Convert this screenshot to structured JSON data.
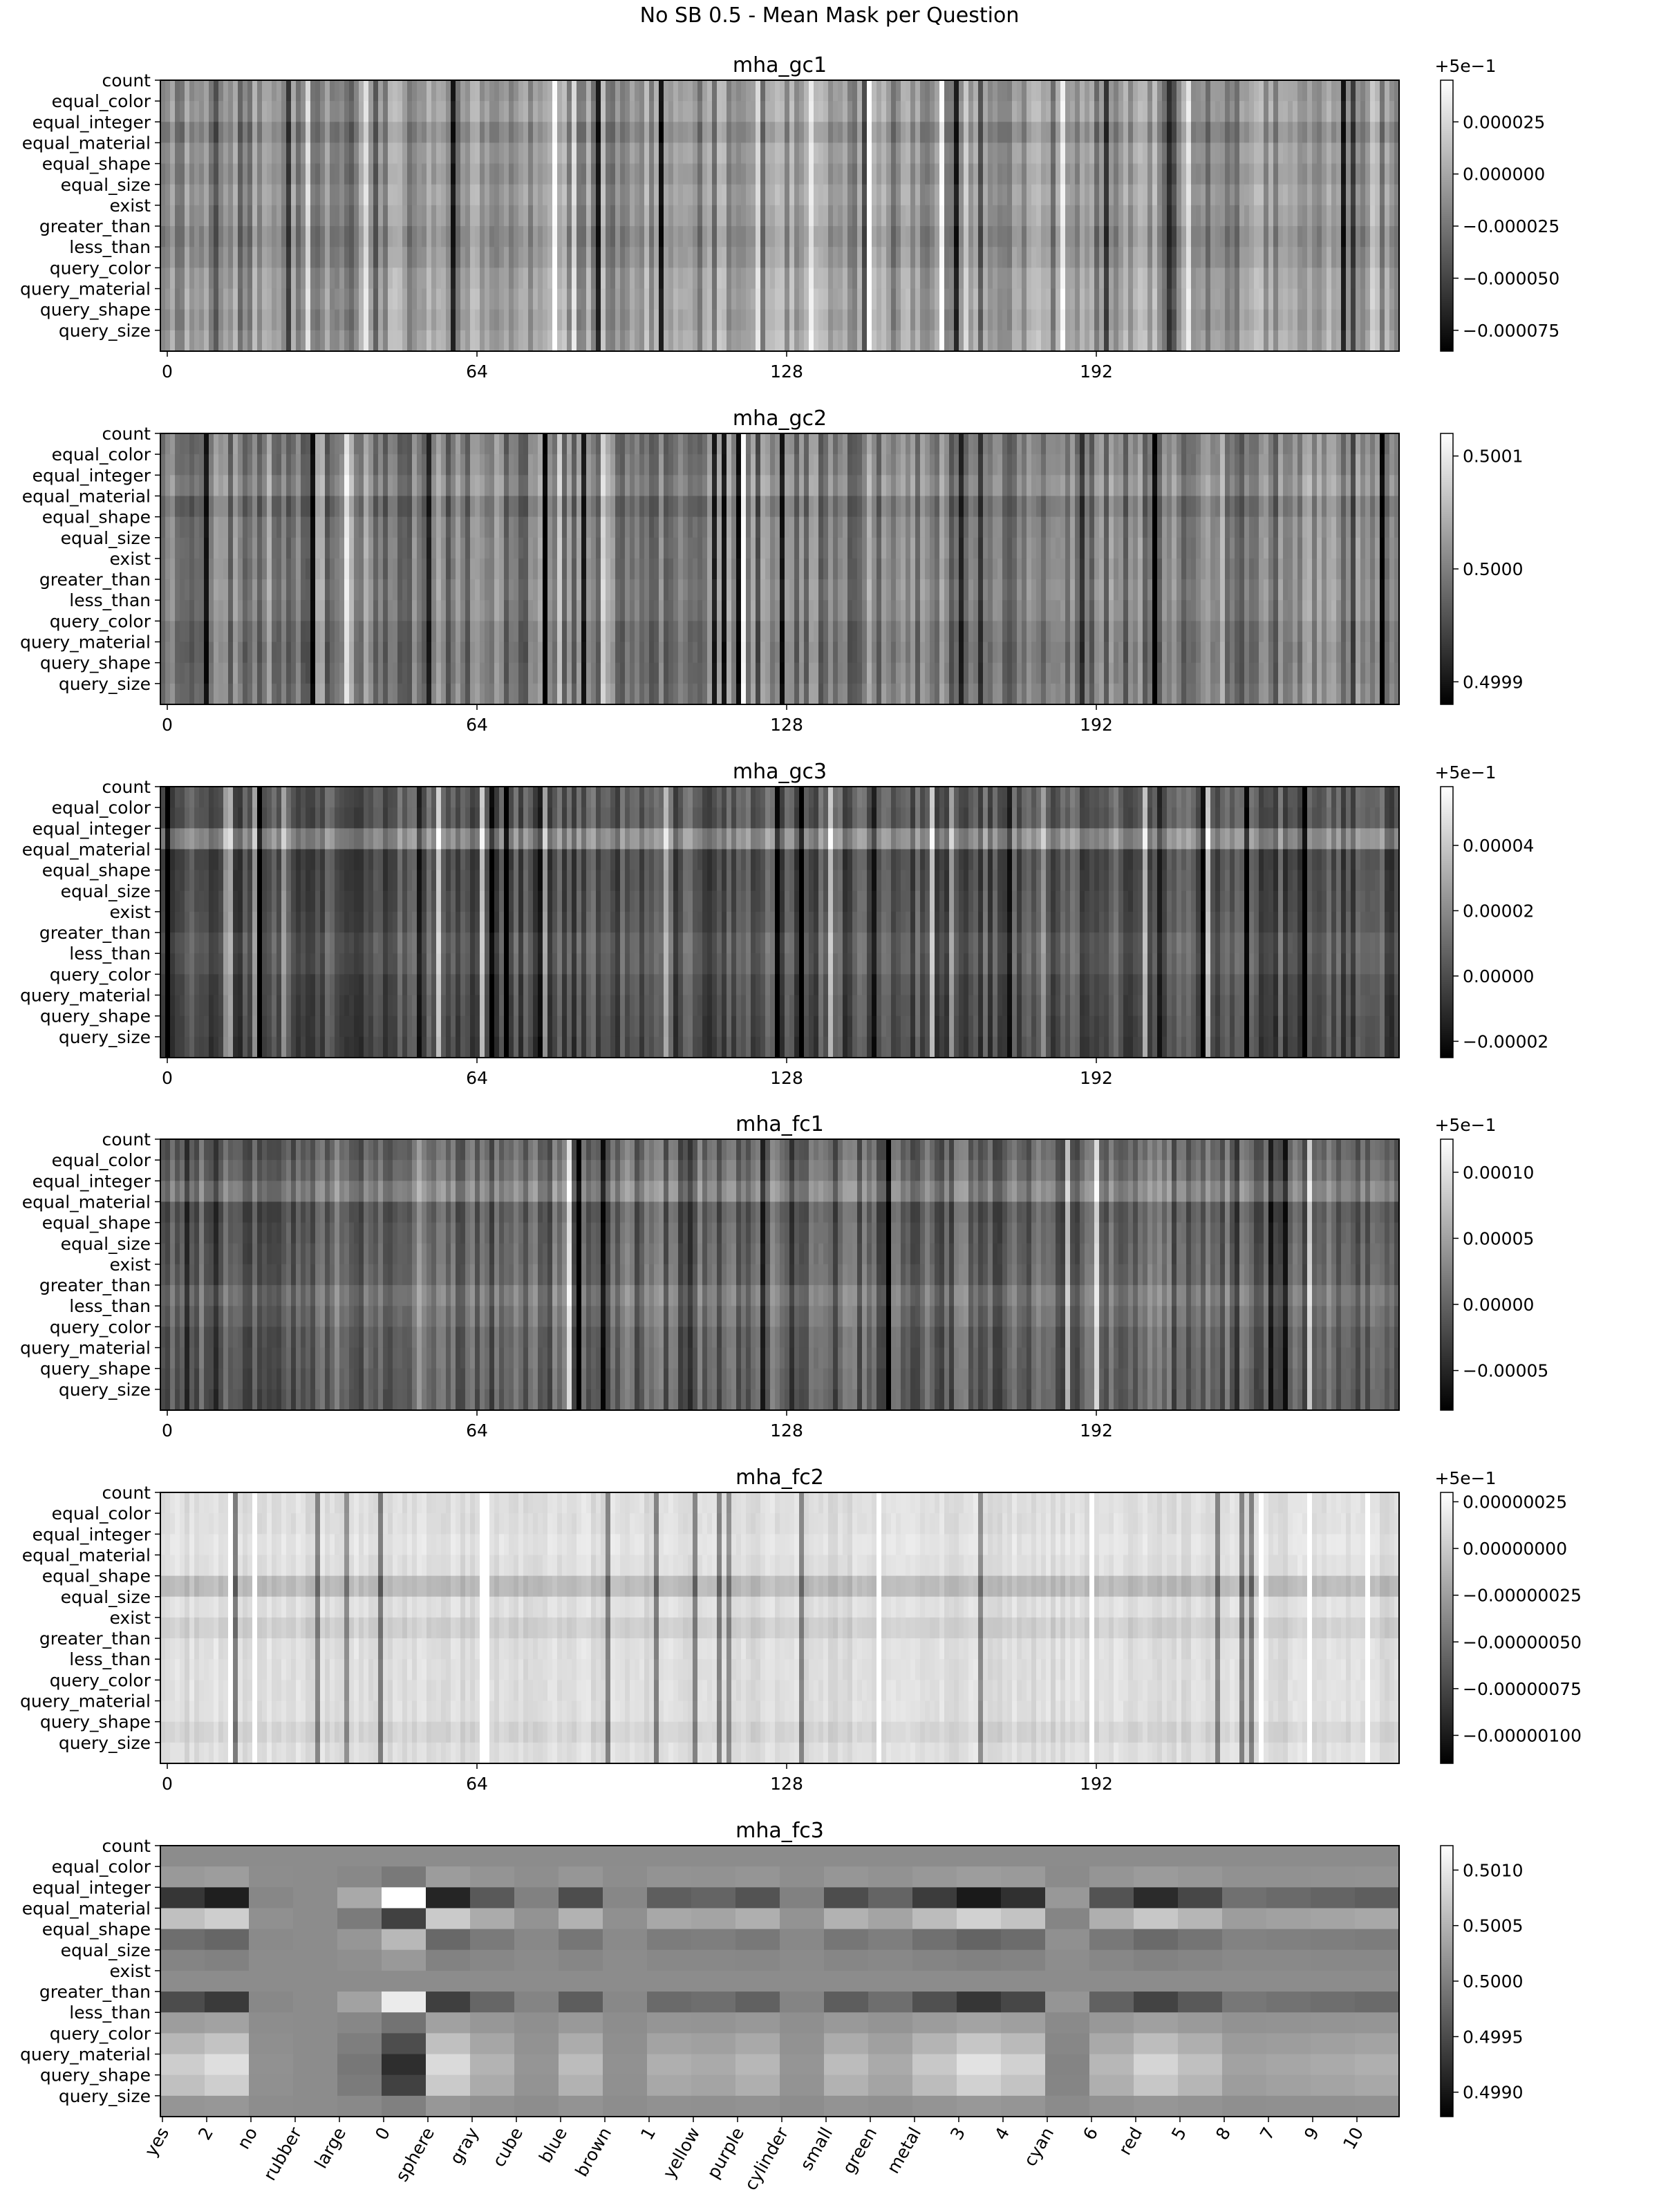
{
  "figure": {
    "title": "No SB 0.5 - Mean Mask per Question"
  },
  "chart_data": [
    {
      "type": "heatmap",
      "title": "mha_gc1",
      "rows": [
        "count",
        "equal_color",
        "equal_integer",
        "equal_material",
        "equal_shape",
        "equal_size",
        "exist",
        "greater_than",
        "less_than",
        "query_color",
        "query_material",
        "query_shape",
        "query_size"
      ],
      "n_cols": 256,
      "x_ticks": [
        0,
        64,
        128,
        192
      ],
      "x_tick_labels": [
        "0",
        "64",
        "128",
        "192"
      ],
      "colorbar": {
        "offset_label": "+5e−1",
        "ticks": [
          2.5e-05,
          0.0,
          -2.5e-05,
          -5e-05,
          -7.5e-05
        ],
        "tick_labels": [
          "0.000025",
          "0.000000",
          "−0.000025",
          "−0.000050",
          "−0.000075"
        ],
        "range": [
          -8.5e-05,
          4.5e-05
        ]
      },
      "seed": 11,
      "base": 0.58,
      "row_var": 0.05,
      "col_var": 0.16,
      "noise": 0.04,
      "row_offsets": [
        0,
        0.02,
        -0.06,
        0.01,
        -0.02,
        0.02,
        -0.01,
        -0.05,
        -0.02,
        0.03,
        0.04,
        0.02,
        0.05
      ]
    },
    {
      "type": "heatmap",
      "title": "mha_gc2",
      "rows": [
        "count",
        "equal_color",
        "equal_integer",
        "equal_material",
        "equal_shape",
        "equal_size",
        "exist",
        "greater_than",
        "less_than",
        "query_color",
        "query_material",
        "query_shape",
        "query_size"
      ],
      "n_cols": 256,
      "x_ticks": [
        0,
        64,
        128,
        192
      ],
      "x_tick_labels": [
        "0",
        "64",
        "128",
        "192"
      ],
      "colorbar": {
        "offset_label": "",
        "ticks": [
          0.5001,
          0.5,
          0.4999
        ],
        "tick_labels": [
          "0.5001",
          "0.5000",
          "0.4999"
        ],
        "range": [
          0.49988,
          0.50012
        ]
      },
      "seed": 23,
      "base": 0.5,
      "row_var": 0.04,
      "col_var": 0.18,
      "noise": 0.04,
      "row_offsets": [
        0,
        0.02,
        0.06,
        -0.04,
        0.01,
        0.02,
        0.01,
        0.03,
        0.02,
        -0.02,
        -0.03,
        -0.02,
        0.0
      ]
    },
    {
      "type": "heatmap",
      "title": "mha_gc3",
      "rows": [
        "count",
        "equal_color",
        "equal_integer",
        "equal_material",
        "equal_shape",
        "equal_size",
        "exist",
        "greater_than",
        "less_than",
        "query_color",
        "query_material",
        "query_shape",
        "query_size"
      ],
      "n_cols": 256,
      "x_ticks": [
        0,
        64,
        128,
        192
      ],
      "x_tick_labels": [
        "0",
        "64",
        "128",
        "192"
      ],
      "colorbar": {
        "offset_label": "+5e−1",
        "ticks": [
          4e-05,
          2e-05,
          0.0,
          -2e-05
        ],
        "tick_labels": [
          "0.00004",
          "0.00002",
          "0.00000",
          "−0.00002"
        ],
        "range": [
          -2.5e-05,
          5.8e-05
        ]
      },
      "seed": 37,
      "base": 0.33,
      "row_var": 0.04,
      "col_var": 0.14,
      "noise": 0.03,
      "row_offsets": [
        0.03,
        0.02,
        0.22,
        -0.03,
        -0.02,
        -0.01,
        0.0,
        0.04,
        0.03,
        -0.01,
        -0.02,
        -0.03,
        -0.04
      ]
    },
    {
      "type": "heatmap",
      "title": "mha_fc1",
      "rows": [
        "count",
        "equal_color",
        "equal_integer",
        "equal_material",
        "equal_shape",
        "equal_size",
        "exist",
        "greater_than",
        "less_than",
        "query_color",
        "query_material",
        "query_shape",
        "query_size"
      ],
      "n_cols": 256,
      "x_ticks": [
        0,
        64,
        128,
        192
      ],
      "x_tick_labels": [
        "0",
        "64",
        "128",
        "192"
      ],
      "colorbar": {
        "offset_label": "+5e−1",
        "ticks": [
          0.0001,
          5e-05,
          0.0,
          -5e-05
        ],
        "tick_labels": [
          "0.00010",
          "0.00005",
          "0.00000",
          "−0.00005"
        ],
        "range": [
          -8e-05,
          0.000125
        ]
      },
      "seed": 53,
      "base": 0.4,
      "row_var": 0.04,
      "col_var": 0.15,
      "noise": 0.03,
      "row_offsets": [
        0.0,
        0.04,
        0.12,
        -0.04,
        -0.02,
        -0.01,
        0.0,
        0.07,
        0.03,
        -0.01,
        -0.01,
        -0.02,
        -0.03
      ]
    },
    {
      "type": "heatmap",
      "title": "mha_fc2",
      "rows": [
        "count",
        "equal_color",
        "equal_integer",
        "equal_material",
        "equal_shape",
        "equal_size",
        "exist",
        "greater_than",
        "less_than",
        "query_color",
        "query_material",
        "query_shape",
        "query_size"
      ],
      "n_cols": 256,
      "x_ticks": [
        0,
        64,
        128,
        192
      ],
      "x_tick_labels": [
        "0",
        "64",
        "128",
        "192"
      ],
      "colorbar": {
        "offset_label": "+5e−1",
        "ticks": [
          2.5e-07,
          0.0,
          -2.5e-07,
          -5e-07,
          -7.5e-07,
          -1e-06
        ],
        "tick_labels": [
          "0.00000025",
          "0.00000000",
          "−0.00000025",
          "−0.00000050",
          "−0.00000075",
          "−0.00000100"
        ],
        "range": [
          -1.15e-06,
          3e-07
        ]
      },
      "seed": 71,
      "base": 0.87,
      "row_var": 0.02,
      "col_var": 0.04,
      "noise": 0.03,
      "row_offsets": [
        0,
        0,
        0.02,
        0,
        -0.14,
        0,
        -0.06,
        0,
        0,
        0,
        0,
        -0.04,
        0
      ]
    },
    {
      "type": "heatmap",
      "title": "mha_fc3",
      "rows": [
        "count",
        "equal_color",
        "equal_integer",
        "equal_material",
        "equal_shape",
        "equal_size",
        "exist",
        "greater_than",
        "less_than",
        "query_color",
        "query_material",
        "query_shape",
        "query_size"
      ],
      "columns": [
        "yes",
        "2",
        "no",
        "rubber",
        "large",
        "0",
        "sphere",
        "gray",
        "cube",
        "blue",
        "brown",
        "1",
        "yellow",
        "purple",
        "cylinder",
        "small",
        "green",
        "metal",
        "3",
        "4",
        "cyan",
        "6",
        "red",
        "5",
        "8",
        "7",
        "9",
        "10"
      ],
      "colorbar": {
        "offset_label": "",
        "ticks": [
          0.501,
          0.5005,
          0.5,
          0.4995,
          0.499
        ],
        "tick_labels": [
          "0.5010",
          "0.5005",
          "0.5000",
          "0.4995",
          "0.4990"
        ],
        "range": [
          0.49878,
          0.50122
        ]
      },
      "row_profile": [
        0.0,
        -0.15,
        1.0,
        -0.6,
        0.35,
        0.1,
        0.0,
        0.75,
        -0.2,
        -0.5,
        -0.75,
        -0.6,
        -0.1
      ],
      "col_strength": [
        0.75,
        0.95,
        0.05,
        0.0,
        -0.25,
        -1.1,
        0.9,
        0.45,
        0.1,
        0.55,
        0.05,
        0.4,
        0.35,
        0.5,
        0.1,
        0.55,
        0.35,
        0.7,
        1.0,
        0.8,
        -0.1,
        0.5,
        0.85,
        0.6,
        0.25,
        0.3,
        0.35,
        0.4
      ]
    }
  ]
}
